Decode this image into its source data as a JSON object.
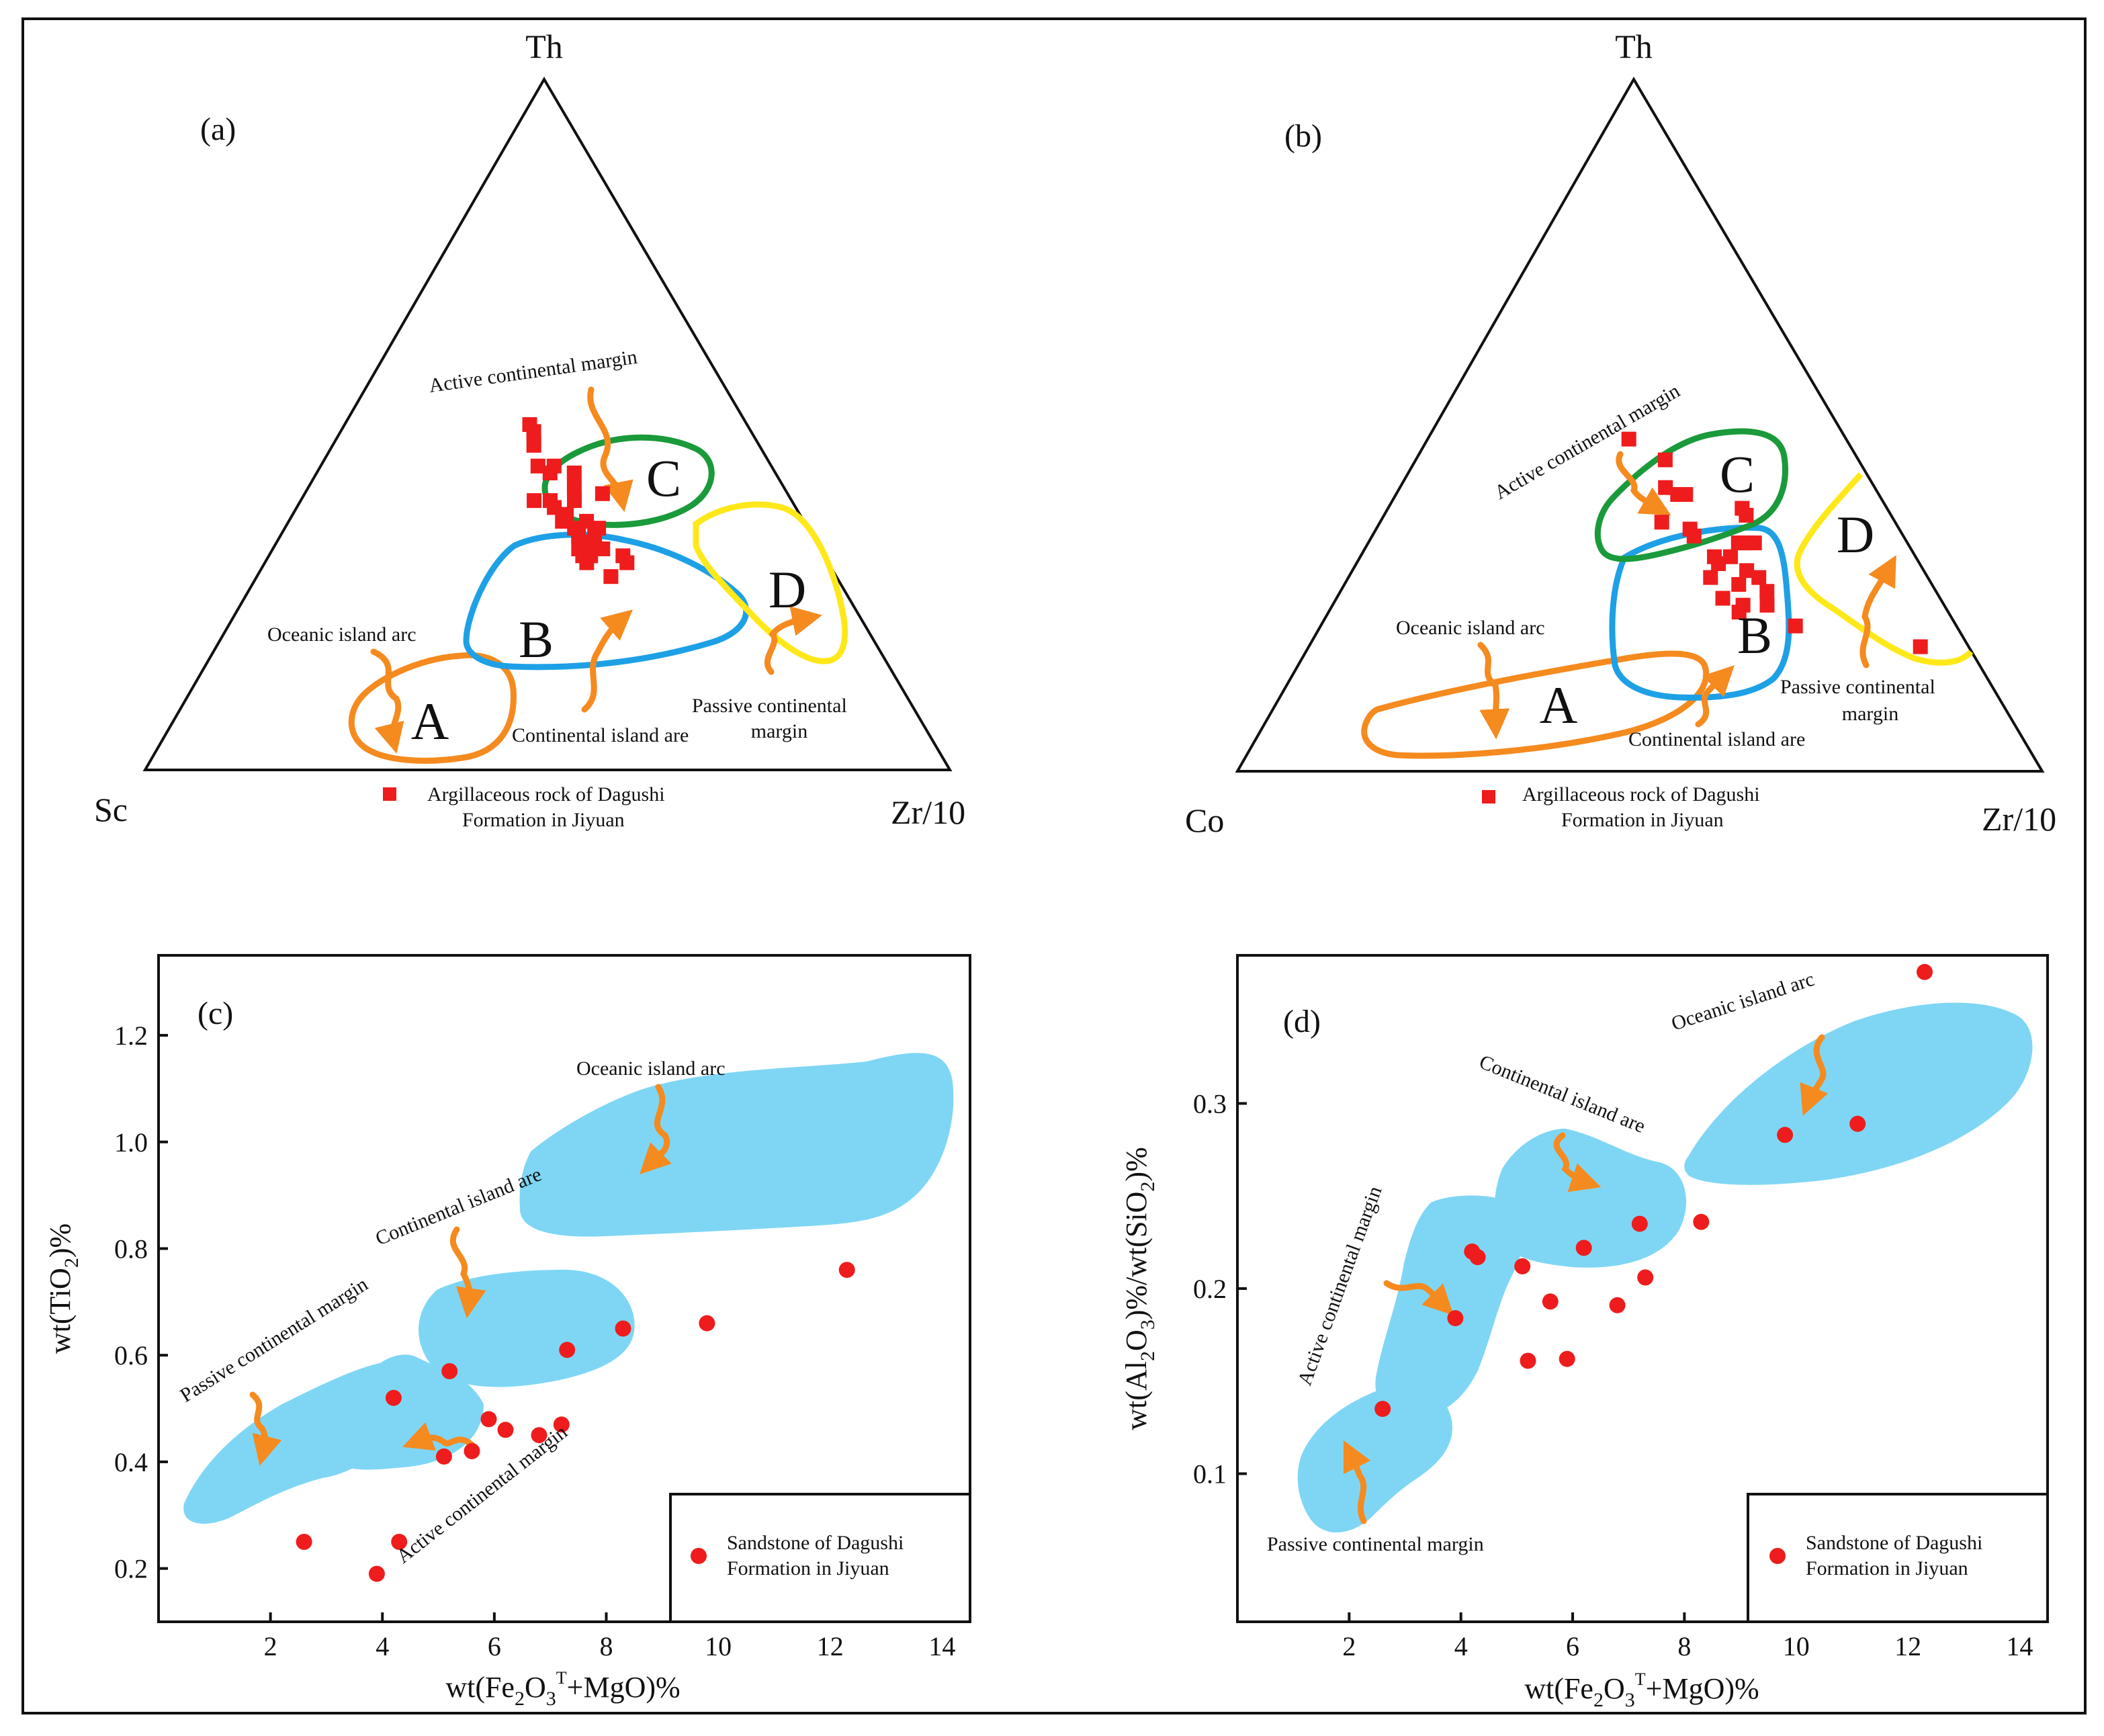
{
  "colors": {
    "sample": "#ee1c1c",
    "arrow": "#f58a1f",
    "field_fill": "#7fd6f4",
    "field_A": "#f58a1f",
    "field_B": "#1ea0e6",
    "field_C": "#1a9a3a",
    "field_D": "#ffe81a"
  },
  "panels": {
    "a": {
      "tag": "(a)",
      "apex_labels": {
        "top": "Th",
        "left": "Sc",
        "right": "Zr/10"
      },
      "field_letters": [
        "A",
        "B",
        "C",
        "D"
      ],
      "field_labels": {
        "active": "Active continental margin",
        "oceanic": "Oceanic island arc",
        "continental": "Continental island are",
        "passive_1": "Passive continental",
        "passive_2": "margin"
      },
      "legend": {
        "line1": "Argillaceous rock of Dagushi",
        "line2": "Formation in Jiyuan",
        "marker": "red-square"
      }
    },
    "b": {
      "tag": "(b)",
      "apex_labels": {
        "top": "Th",
        "left": "Co",
        "right": "Zr/10"
      },
      "field_letters": [
        "A",
        "B",
        "C",
        "D"
      ],
      "field_labels": {
        "active": "Active continental margin",
        "oceanic": "Oceanic island arc",
        "continental": "Continental island are",
        "passive_1": "Passive continental",
        "passive_2": "margin"
      },
      "legend": {
        "line1": "Argillaceous rock of Dagushi",
        "line2": "Formation in Jiyuan",
        "marker": "red-square"
      }
    },
    "c": {
      "tag": "(c)",
      "field_labels": {
        "oceanic": "Oceanic island arc",
        "continental": "Continental island are",
        "passive": "Passive continental margin",
        "active": "Active continental margin"
      },
      "legend": {
        "line1": "Sandstone of Dagushi",
        "line2": "Formation in Jiyuan",
        "marker": "red-circle"
      }
    },
    "d": {
      "tag": "(d)",
      "field_labels": {
        "oceanic": "Oceanic island arc",
        "continental": "Continental island are",
        "active": "Active continental margin",
        "passive": "Passive continental margin"
      },
      "legend": {
        "line1": "Sandstone of Dagushi",
        "line2": "Formation in Jiyuan",
        "marker": "red-circle"
      }
    }
  },
  "chart_data": [
    {
      "panel": "a",
      "type": "scatter",
      "plot": "ternary",
      "vertices": [
        "Th",
        "Sc",
        "Zr/10"
      ],
      "series": [
        {
          "marker": "square",
          "points": [
            {
              "Th": 0.5,
              "Sc": 0.27,
              "Zr/10": 0.23
            },
            {
              "Th": 0.49,
              "Sc": 0.27,
              "Zr/10": 0.24
            },
            {
              "Th": 0.47,
              "Sc": 0.28,
              "Zr/10": 0.25
            },
            {
              "Th": 0.44,
              "Sc": 0.29,
              "Zr/10": 0.27
            },
            {
              "Th": 0.43,
              "Sc": 0.28,
              "Zr/10": 0.29
            },
            {
              "Th": 0.44,
              "Sc": 0.27,
              "Zr/10": 0.29
            },
            {
              "Th": 0.43,
              "Sc": 0.25,
              "Zr/10": 0.32
            },
            {
              "Th": 0.41,
              "Sc": 0.26,
              "Zr/10": 0.33
            },
            {
              "Th": 0.4,
              "Sc": 0.23,
              "Zr/10": 0.37
            },
            {
              "Th": 0.39,
              "Sc": 0.32,
              "Zr/10": 0.29
            },
            {
              "Th": 0.39,
              "Sc": 0.3,
              "Zr/10": 0.31
            },
            {
              "Th": 0.39,
              "Sc": 0.27,
              "Zr/10": 0.34
            },
            {
              "Th": 0.38,
              "Sc": 0.3,
              "Zr/10": 0.32
            },
            {
              "Th": 0.37,
              "Sc": 0.29,
              "Zr/10": 0.34
            },
            {
              "Th": 0.36,
              "Sc": 0.3,
              "Zr/10": 0.34
            },
            {
              "Th": 0.36,
              "Sc": 0.27,
              "Zr/10": 0.37
            },
            {
              "Th": 0.35,
              "Sc": 0.29,
              "Zr/10": 0.36
            },
            {
              "Th": 0.35,
              "Sc": 0.26,
              "Zr/10": 0.39
            },
            {
              "Th": 0.34,
              "Sc": 0.29,
              "Zr/10": 0.37
            },
            {
              "Th": 0.34,
              "Sc": 0.27,
              "Zr/10": 0.39
            },
            {
              "Th": 0.33,
              "Sc": 0.28,
              "Zr/10": 0.39
            },
            {
              "Th": 0.32,
              "Sc": 0.3,
              "Zr/10": 0.38
            },
            {
              "Th": 0.32,
              "Sc": 0.27,
              "Zr/10": 0.41
            },
            {
              "Th": 0.31,
              "Sc": 0.3,
              "Zr/10": 0.39
            },
            {
              "Th": 0.31,
              "Sc": 0.29,
              "Zr/10": 0.4
            },
            {
              "Th": 0.3,
              "Sc": 0.3,
              "Zr/10": 0.4
            },
            {
              "Th": 0.31,
              "Sc": 0.25,
              "Zr/10": 0.44
            },
            {
              "Th": 0.3,
              "Sc": 0.25,
              "Zr/10": 0.45
            },
            {
              "Th": 0.28,
              "Sc": 0.28,
              "Zr/10": 0.44
            }
          ]
        }
      ]
    },
    {
      "panel": "b",
      "type": "scatter",
      "plot": "ternary",
      "vertices": [
        "Th",
        "Co",
        "Zr/10"
      ],
      "series": [
        {
          "marker": "square",
          "points": [
            {
              "Th": 0.48,
              "Co": 0.27,
              "Zr/10": 0.25
            },
            {
              "Th": 0.45,
              "Co": 0.24,
              "Zr/10": 0.31
            },
            {
              "Th": 0.41,
              "Co": 0.26,
              "Zr/10": 0.33
            },
            {
              "Th": 0.4,
              "Co": 0.25,
              "Zr/10": 0.35
            },
            {
              "Th": 0.4,
              "Co": 0.24,
              "Zr/10": 0.36
            },
            {
              "Th": 0.38,
              "Co": 0.18,
              "Zr/10": 0.44
            },
            {
              "Th": 0.37,
              "Co": 0.18,
              "Zr/10": 0.45
            },
            {
              "Th": 0.36,
              "Co": 0.29,
              "Zr/10": 0.35
            },
            {
              "Th": 0.35,
              "Co": 0.26,
              "Zr/10": 0.39
            },
            {
              "Th": 0.34,
              "Co": 0.26,
              "Zr/10": 0.4
            },
            {
              "Th": 0.33,
              "Co": 0.21,
              "Zr/10": 0.46
            },
            {
              "Th": 0.33,
              "Co": 0.2,
              "Zr/10": 0.47
            },
            {
              "Th": 0.33,
              "Co": 0.19,
              "Zr/10": 0.48
            },
            {
              "Th": 0.31,
              "Co": 0.25,
              "Zr/10": 0.44
            },
            {
              "Th": 0.31,
              "Co": 0.23,
              "Zr/10": 0.46
            },
            {
              "Th": 0.3,
              "Co": 0.25,
              "Zr/10": 0.45
            },
            {
              "Th": 0.29,
              "Co": 0.22,
              "Zr/10": 0.49
            },
            {
              "Th": 0.28,
              "Co": 0.21,
              "Zr/10": 0.51
            },
            {
              "Th": 0.28,
              "Co": 0.27,
              "Zr/10": 0.45
            },
            {
              "Th": 0.27,
              "Co": 0.24,
              "Zr/10": 0.49
            },
            {
              "Th": 0.26,
              "Co": 0.21,
              "Zr/10": 0.53
            },
            {
              "Th": 0.25,
              "Co": 0.27,
              "Zr/10": 0.48
            },
            {
              "Th": 0.24,
              "Co": 0.25,
              "Zr/10": 0.51
            },
            {
              "Th": 0.24,
              "Co": 0.22,
              "Zr/10": 0.54
            },
            {
              "Th": 0.23,
              "Co": 0.26,
              "Zr/10": 0.51
            },
            {
              "Th": 0.21,
              "Co": 0.2,
              "Zr/10": 0.59
            },
            {
              "Th": 0.18,
              "Co": 0.06,
              "Zr/10": 0.76
            }
          ]
        }
      ]
    },
    {
      "panel": "c",
      "type": "scatter",
      "xlabel": "wt(Fe2O3T+MgO)%",
      "ylabel": "wt(TiO2)%",
      "xlim": [
        0,
        14.5
      ],
      "ylim": [
        0.1,
        1.35
      ],
      "xticks": [
        2,
        4,
        6,
        8,
        10,
        12,
        14
      ],
      "yticks": [
        0.2,
        0.4,
        0.6,
        0.8,
        1.0,
        1.2
      ],
      "xtick_labels": [
        "2",
        "4",
        "6",
        "8",
        "10",
        "12",
        "14"
      ],
      "ytick_labels": [
        "0.2",
        "0.4",
        "0.6",
        "0.8",
        "1.0",
        "1.2"
      ],
      "series": [
        {
          "marker": "circle",
          "points": [
            {
              "x": 2.6,
              "y": 0.25
            },
            {
              "x": 3.9,
              "y": 0.19
            },
            {
              "x": 4.2,
              "y": 0.52
            },
            {
              "x": 4.3,
              "y": 0.25
            },
            {
              "x": 5.1,
              "y": 0.41
            },
            {
              "x": 5.2,
              "y": 0.57
            },
            {
              "x": 5.6,
              "y": 0.42
            },
            {
              "x": 5.9,
              "y": 0.48
            },
            {
              "x": 6.2,
              "y": 0.46
            },
            {
              "x": 6.8,
              "y": 0.45
            },
            {
              "x": 7.2,
              "y": 0.47
            },
            {
              "x": 7.3,
              "y": 0.61
            },
            {
              "x": 8.3,
              "y": 0.65
            },
            {
              "x": 9.8,
              "y": 0.66
            },
            {
              "x": 12.3,
              "y": 0.76
            }
          ]
        }
      ]
    },
    {
      "panel": "d",
      "type": "scatter",
      "xlabel": "wt(Fe2O3T+MgO)%",
      "ylabel": "wt(Al2O3)%/wt(SiO2)%",
      "xlim": [
        0,
        14.5
      ],
      "ylim": [
        0.02,
        0.38
      ],
      "xticks": [
        2,
        4,
        6,
        8,
        10,
        12,
        14
      ],
      "yticks": [
        0.1,
        0.2,
        0.3
      ],
      "xtick_labels": [
        "2",
        "4",
        "6",
        "8",
        "10",
        "12",
        "14"
      ],
      "ytick_labels": [
        "0.1",
        "0.2",
        "0.3"
      ],
      "series": [
        {
          "marker": "circle",
          "points": [
            {
              "x": 2.6,
              "y": 0.135
            },
            {
              "x": 3.9,
              "y": 0.184
            },
            {
              "x": 4.2,
              "y": 0.22
            },
            {
              "x": 4.3,
              "y": 0.217
            },
            {
              "x": 5.1,
              "y": 0.212
            },
            {
              "x": 5.2,
              "y": 0.161
            },
            {
              "x": 5.6,
              "y": 0.193
            },
            {
              "x": 5.9,
              "y": 0.162
            },
            {
              "x": 6.2,
              "y": 0.222
            },
            {
              "x": 6.8,
              "y": 0.191
            },
            {
              "x": 7.2,
              "y": 0.235
            },
            {
              "x": 7.3,
              "y": 0.206
            },
            {
              "x": 8.3,
              "y": 0.236
            },
            {
              "x": 9.8,
              "y": 0.283
            },
            {
              "x": 11.1,
              "y": 0.289
            },
            {
              "x": 12.3,
              "y": 0.371
            }
          ]
        }
      ]
    }
  ]
}
